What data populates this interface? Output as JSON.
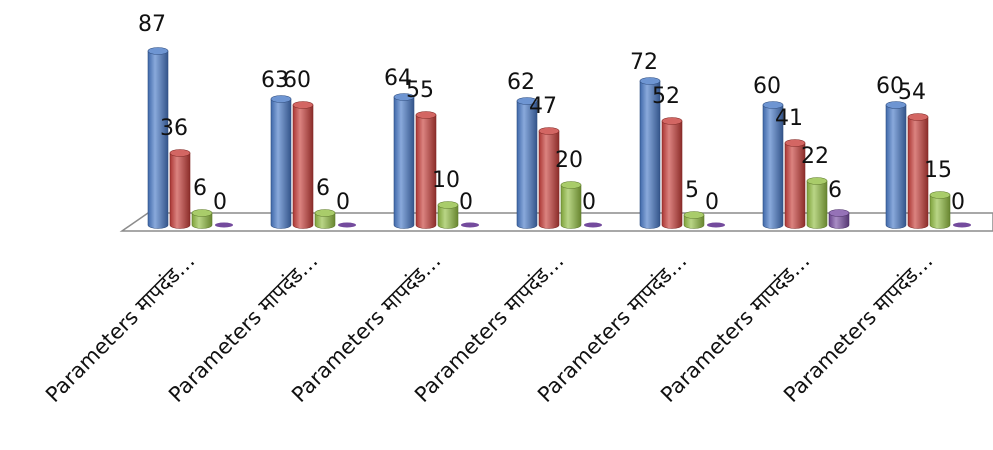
{
  "chart_data": {
    "type": "bar",
    "style": "3d-cylinder",
    "categories": [
      "Parameters मापदंड…",
      "Parameters मापदंड…",
      "Parameters मापदंड…",
      "Parameters मापदंड…",
      "Parameters मापदंड…",
      "Parameters मापदंड…",
      "Parameters मापदंड…"
    ],
    "series": [
      {
        "values": [
          87,
          63,
          64,
          62,
          72,
          60,
          60
        ],
        "color": "#4a7ac7"
      },
      {
        "values": [
          36,
          60,
          55,
          47,
          52,
          41,
          54
        ],
        "color": "#c8403c"
      },
      {
        "values": [
          6,
          6,
          10,
          20,
          5,
          22,
          15
        ],
        "color": "#94bf45"
      },
      {
        "values": [
          0,
          0,
          0,
          0,
          0,
          6,
          0
        ],
        "color": "#7a4fa5"
      }
    ],
    "ylim": [
      0,
      90
    ],
    "grid": false,
    "legend": "none",
    "data_labels": true
  }
}
